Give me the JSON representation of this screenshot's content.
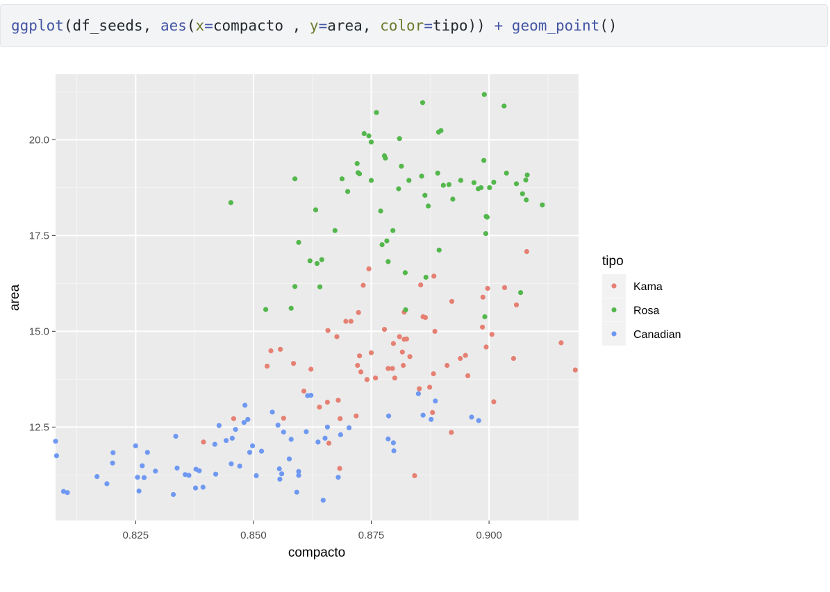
{
  "code": {
    "tokens": [
      {
        "text": "ggplot",
        "cls": "tok-fn"
      },
      {
        "text": "(df_seeds, ",
        "cls": ""
      },
      {
        "text": "aes",
        "cls": "tok-fn"
      },
      {
        "text": "(",
        "cls": ""
      },
      {
        "text": "x",
        "cls": "tok-arg"
      },
      {
        "text": "=",
        "cls": "tok-op"
      },
      {
        "text": "compacto , ",
        "cls": ""
      },
      {
        "text": "y",
        "cls": "tok-arg"
      },
      {
        "text": "=",
        "cls": "tok-op"
      },
      {
        "text": "area, ",
        "cls": ""
      },
      {
        "text": "color",
        "cls": "tok-arg"
      },
      {
        "text": "=",
        "cls": "tok-op"
      },
      {
        "text": "tipo)) ",
        "cls": ""
      },
      {
        "text": "+",
        "cls": "tok-op"
      },
      {
        "text": " ",
        "cls": ""
      },
      {
        "text": "geom_point",
        "cls": "tok-fn"
      },
      {
        "text": "()",
        "cls": ""
      }
    ]
  },
  "chart_data": {
    "type": "scatter",
    "xlabel": "compacto",
    "ylabel": "area",
    "xlim": [
      0.808,
      0.919
    ],
    "ylim": [
      10.59,
      21.18
    ],
    "x_ticks": [
      {
        "value": 0.825,
        "label": "0.825"
      },
      {
        "value": 0.85,
        "label": "0.850"
      },
      {
        "value": 0.875,
        "label": "0.875"
      },
      {
        "value": 0.9,
        "label": "0.900"
      }
    ],
    "y_ticks": [
      {
        "value": 12.5,
        "label": "12.5"
      },
      {
        "value": 15.0,
        "label": "15.0"
      },
      {
        "value": 17.5,
        "label": "17.5"
      },
      {
        "value": 20.0,
        "label": "20.0"
      }
    ],
    "grid": true,
    "panel_background": "#ebebeb",
    "legend": {
      "title": "tipo",
      "position": "right"
    },
    "series": [
      {
        "name": "Kama",
        "color": "#e58073",
        "points": [
          [
            0.8458,
            12.72
          ],
          [
            0.8394,
            12.11
          ],
          [
            0.8564,
            12.73
          ],
          [
            0.8529,
            14.09
          ],
          [
            0.8537,
            14.49
          ],
          [
            0.8557,
            14.53
          ],
          [
            0.8585,
            14.16
          ],
          [
            0.8607,
            13.44
          ],
          [
            0.8622,
            14.01
          ],
          [
            0.864,
            13.02
          ],
          [
            0.8657,
            13.15
          ],
          [
            0.8658,
            15.02
          ],
          [
            0.866,
            12.08
          ],
          [
            0.8677,
            14.86
          ],
          [
            0.868,
            13.2
          ],
          [
            0.8683,
            11.42
          ],
          [
            0.8684,
            12.72
          ],
          [
            0.8696,
            15.26
          ],
          [
            0.8707,
            15.26
          ],
          [
            0.8718,
            12.79
          ],
          [
            0.8721,
            14.11
          ],
          [
            0.8723,
            15.49
          ],
          [
            0.8725,
            14.36
          ],
          [
            0.8728,
            13.94
          ],
          [
            0.8733,
            16.2
          ],
          [
            0.8741,
            13.74
          ],
          [
            0.8745,
            16.63
          ],
          [
            0.875,
            14.44
          ],
          [
            0.8759,
            13.78
          ],
          [
            0.8778,
            15.05
          ],
          [
            0.8786,
            14.03
          ],
          [
            0.8795,
            14.03
          ],
          [
            0.8797,
            14.68
          ],
          [
            0.88,
            13.78
          ],
          [
            0.881,
            14.86
          ],
          [
            0.8816,
            14.46
          ],
          [
            0.8818,
            14.11
          ],
          [
            0.882,
            14.79
          ],
          [
            0.882,
            15.5
          ],
          [
            0.8825,
            14.8
          ],
          [
            0.8832,
            14.34
          ],
          [
            0.8842,
            11.23
          ],
          [
            0.8852,
            13.5
          ],
          [
            0.8855,
            16.21
          ],
          [
            0.886,
            15.38
          ],
          [
            0.8865,
            15.36
          ],
          [
            0.8874,
            13.54
          ],
          [
            0.888,
            12.88
          ],
          [
            0.8882,
            13.89
          ],
          [
            0.8883,
            16.44
          ],
          [
            0.8885,
            15.0
          ],
          [
            0.8911,
            14.11
          ],
          [
            0.892,
            12.36
          ],
          [
            0.8921,
            15.78
          ],
          [
            0.8939,
            14.29
          ],
          [
            0.895,
            14.37
          ],
          [
            0.8955,
            13.84
          ],
          [
            0.8986,
            15.11
          ],
          [
            0.8987,
            15.89
          ],
          [
            0.8994,
            14.59
          ],
          [
            0.8997,
            16.12
          ],
          [
            0.9006,
            14.92
          ],
          [
            0.901,
            13.16
          ],
          [
            0.9033,
            16.14
          ],
          [
            0.9052,
            14.29
          ],
          [
            0.9058,
            15.69
          ],
          [
            0.908,
            17.08
          ],
          [
            0.9153,
            14.7
          ],
          [
            0.9183,
            13.99
          ]
        ]
      },
      {
        "name": "Rosa",
        "color": "#53b74c",
        "points": [
          [
            0.8452,
            18.36
          ],
          [
            0.8526,
            15.57
          ],
          [
            0.858,
            15.6
          ],
          [
            0.8588,
            16.17
          ],
          [
            0.8588,
            18.98
          ],
          [
            0.8596,
            17.32
          ],
          [
            0.862,
            16.84
          ],
          [
            0.8632,
            18.17
          ],
          [
            0.8635,
            16.77
          ],
          [
            0.8641,
            16.16
          ],
          [
            0.8645,
            16.87
          ],
          [
            0.8673,
            17.63
          ],
          [
            0.8688,
            18.98
          ],
          [
            0.87,
            18.65
          ],
          [
            0.872,
            19.38
          ],
          [
            0.8722,
            19.14
          ],
          [
            0.8725,
            19.11
          ],
          [
            0.8735,
            20.16
          ],
          [
            0.8745,
            20.1
          ],
          [
            0.875,
            19.94
          ],
          [
            0.875,
            18.94
          ],
          [
            0.8761,
            20.71
          ],
          [
            0.877,
            18.14
          ],
          [
            0.8773,
            17.26
          ],
          [
            0.8778,
            19.58
          ],
          [
            0.878,
            19.52
          ],
          [
            0.8783,
            17.36
          ],
          [
            0.8786,
            16.82
          ],
          [
            0.8796,
            17.63
          ],
          [
            0.8808,
            18.72
          ],
          [
            0.881,
            20.03
          ],
          [
            0.8814,
            19.31
          ],
          [
            0.8822,
            16.53
          ],
          [
            0.8823,
            15.56
          ],
          [
            0.883,
            18.94
          ],
          [
            0.8857,
            19.05
          ],
          [
            0.8859,
            20.97
          ],
          [
            0.8864,
            18.55
          ],
          [
            0.8866,
            16.41
          ],
          [
            0.8871,
            18.27
          ],
          [
            0.8891,
            19.13
          ],
          [
            0.8893,
            20.2
          ],
          [
            0.8894,
            17.12
          ],
          [
            0.8898,
            20.24
          ],
          [
            0.8903,
            18.81
          ],
          [
            0.8915,
            18.83
          ],
          [
            0.8923,
            18.45
          ],
          [
            0.894,
            18.94
          ],
          [
            0.8968,
            18.88
          ],
          [
            0.8977,
            18.72
          ],
          [
            0.8983,
            18.75
          ],
          [
            0.8989,
            19.46
          ],
          [
            0.899,
            21.18
          ],
          [
            0.8991,
            15.38
          ],
          [
            0.8993,
            17.55
          ],
          [
            0.8994,
            18.0
          ],
          [
            0.8996,
            17.98
          ],
          [
            0.9001,
            18.75
          ],
          [
            0.901,
            18.89
          ],
          [
            0.9032,
            20.88
          ],
          [
            0.9037,
            19.13
          ],
          [
            0.9058,
            18.85
          ],
          [
            0.9067,
            16.01
          ],
          [
            0.9071,
            18.59
          ],
          [
            0.9078,
            18.95
          ],
          [
            0.9079,
            18.43
          ],
          [
            0.9081,
            19.08
          ],
          [
            0.9113,
            18.3
          ]
        ]
      },
      {
        "name": "Canadian",
        "color": "#6e98f2",
        "points": [
          [
            0.808,
            12.13
          ],
          [
            0.8082,
            11.75
          ],
          [
            0.8097,
            10.82
          ],
          [
            0.8105,
            10.79
          ],
          [
            0.8168,
            11.21
          ],
          [
            0.8189,
            11.02
          ],
          [
            0.8201,
            11.56
          ],
          [
            0.8202,
            11.83
          ],
          [
            0.825,
            12.01
          ],
          [
            0.8254,
            11.19
          ],
          [
            0.8257,
            10.83
          ],
          [
            0.8264,
            11.49
          ],
          [
            0.8268,
            11.18
          ],
          [
            0.8275,
            11.84
          ],
          [
            0.8292,
            11.35
          ],
          [
            0.833,
            10.74
          ],
          [
            0.8335,
            12.26
          ],
          [
            0.8338,
            11.43
          ],
          [
            0.8355,
            11.26
          ],
          [
            0.8363,
            11.24
          ],
          [
            0.8377,
            10.91
          ],
          [
            0.8378,
            11.4
          ],
          [
            0.8385,
            11.36
          ],
          [
            0.8393,
            10.93
          ],
          [
            0.8418,
            12.05
          ],
          [
            0.842,
            11.27
          ],
          [
            0.8427,
            12.54
          ],
          [
            0.8442,
            12.15
          ],
          [
            0.8453,
            11.54
          ],
          [
            0.8455,
            12.21
          ],
          [
            0.8462,
            12.44
          ],
          [
            0.8471,
            11.48
          ],
          [
            0.848,
            12.62
          ],
          [
            0.8482,
            13.07
          ],
          [
            0.8488,
            12.7
          ],
          [
            0.8492,
            11.84
          ],
          [
            0.8498,
            12.01
          ],
          [
            0.8506,
            11.23
          ],
          [
            0.8517,
            11.87
          ],
          [
            0.854,
            12.89
          ],
          [
            0.8552,
            12.55
          ],
          [
            0.8555,
            11.41
          ],
          [
            0.8556,
            11.14
          ],
          [
            0.856,
            11.28
          ],
          [
            0.8564,
            12.37
          ],
          [
            0.8576,
            11.67
          ],
          [
            0.858,
            12.18
          ],
          [
            0.8592,
            10.8
          ],
          [
            0.8596,
            11.34
          ],
          [
            0.8596,
            11.24
          ],
          [
            0.8612,
            12.38
          ],
          [
            0.8615,
            13.32
          ],
          [
            0.8622,
            13.33
          ],
          [
            0.8637,
            12.11
          ],
          [
            0.8648,
            10.59
          ],
          [
            0.8652,
            12.21
          ],
          [
            0.8657,
            12.5
          ],
          [
            0.868,
            11.19
          ],
          [
            0.8685,
            12.3
          ],
          [
            0.8703,
            12.48
          ],
          [
            0.8787,
            12.79
          ],
          [
            0.8786,
            12.19
          ],
          [
            0.8797,
            12.09
          ],
          [
            0.8798,
            11.88
          ],
          [
            0.885,
            13.37
          ],
          [
            0.886,
            12.81
          ],
          [
            0.8877,
            12.7
          ],
          [
            0.8886,
            13.18
          ],
          [
            0.8963,
            12.76
          ],
          [
            0.8978,
            12.67
          ]
        ]
      }
    ]
  }
}
